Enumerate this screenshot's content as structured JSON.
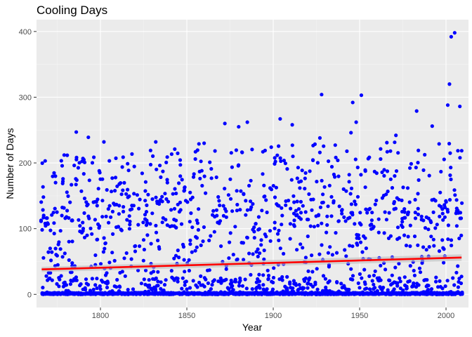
{
  "chart_data": {
    "type": "scatter",
    "title": "Cooling Days",
    "xlabel": "Year",
    "ylabel": "Number of Days",
    "xlim": [
      1763,
      2013
    ],
    "ylim": [
      -20,
      418
    ],
    "x_ticks": [
      1800,
      1850,
      1900,
      1950,
      2000
    ],
    "y_ticks": [
      0,
      100,
      200,
      300,
      400
    ],
    "year_range": [
      1766,
      2009
    ],
    "grid": true,
    "point_color": "#0000FF",
    "trend": {
      "type": "linear",
      "color": "#FF0000",
      "band_color": "#BEBEBE",
      "x": [
        1766,
        2009
      ],
      "y": [
        38,
        56
      ],
      "band_halfwidth": [
        4,
        5
      ]
    },
    "outliers": [
      {
        "x": 2005,
        "y": 398
      },
      {
        "x": 2003,
        "y": 392
      },
      {
        "x": 2002,
        "y": 320
      },
      {
        "x": 1928,
        "y": 304
      },
      {
        "x": 1951,
        "y": 303
      },
      {
        "x": 1946,
        "y": 292
      },
      {
        "x": 2001,
        "y": 288
      },
      {
        "x": 2008,
        "y": 286
      },
      {
        "x": 1983,
        "y": 279
      },
      {
        "x": 1904,
        "y": 267
      },
      {
        "x": 1885,
        "y": 262
      },
      {
        "x": 1948,
        "y": 262
      },
      {
        "x": 1872,
        "y": 260
      },
      {
        "x": 1911,
        "y": 258
      },
      {
        "x": 1992,
        "y": 256
      },
      {
        "x": 1880,
        "y": 255
      },
      {
        "x": 1786,
        "y": 247
      },
      {
        "x": 1945,
        "y": 246
      },
      {
        "x": 1971,
        "y": 242
      },
      {
        "x": 1793,
        "y": 239
      },
      {
        "x": 1927,
        "y": 238
      },
      {
        "x": 1832,
        "y": 232
      },
      {
        "x": 1802,
        "y": 232
      },
      {
        "x": 1860,
        "y": 230
      },
      {
        "x": 1857,
        "y": 229
      },
      {
        "x": 1996,
        "y": 229
      },
      {
        "x": 1843,
        "y": 221
      },
      {
        "x": 1829,
        "y": 219
      },
      {
        "x": 1984,
        "y": 219
      },
      {
        "x": 1779,
        "y": 212
      }
    ]
  }
}
